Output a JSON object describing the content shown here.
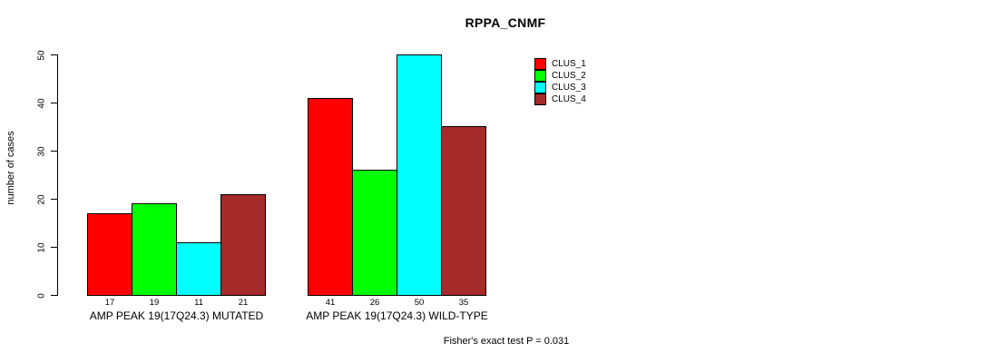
{
  "chart_data": {
    "type": "bar",
    "title": "RPPA_CNMF",
    "xlabel": "",
    "ylabel": "number of cases",
    "categories": [
      "AMP PEAK 19(17Q24.3) MUTATED",
      "AMP PEAK 19(17Q24.3) WILD-TYPE"
    ],
    "series": [
      {
        "name": "CLUS_1",
        "color": "#ff0000",
        "values": [
          17,
          41
        ]
      },
      {
        "name": "CLUS_2",
        "color": "#00ff00",
        "values": [
          19,
          26
        ]
      },
      {
        "name": "CLUS_3",
        "color": "#00ffff",
        "values": [
          11,
          50
        ]
      },
      {
        "name": "CLUS_4",
        "color": "#a52a2a",
        "values": [
          21,
          35
        ]
      }
    ],
    "ylim": [
      0,
      50
    ],
    "yticks": [
      0,
      10,
      20,
      30,
      40,
      50
    ],
    "show_bar_values": true,
    "grid": false,
    "legend_position": "top-right",
    "annotation": "Fisher's exact test P = 0.031"
  },
  "colors": {
    "background": "#ffffff",
    "axis": "#000000",
    "text": "#000000"
  }
}
